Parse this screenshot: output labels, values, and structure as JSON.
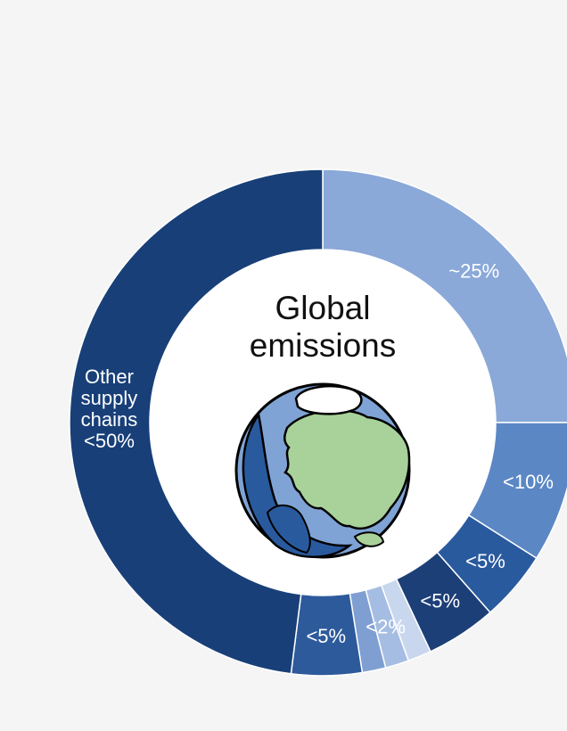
{
  "chart_data": {
    "type": "pie",
    "title_lines": [
      "Global",
      "emissions"
    ],
    "segments": [
      {
        "label": "~25%",
        "value": 25,
        "color": "#8aa8d8"
      },
      {
        "label": "<10%",
        "value": 9,
        "color": "#5b87c5"
      },
      {
        "label": "<5%",
        "value": 4.5,
        "color": "#2a5a9e"
      },
      {
        "label": "<5%",
        "value": 4.5,
        "color": "#1d3f78"
      },
      {
        "label": "",
        "value": 1.5,
        "color": "#c9d7ee"
      },
      {
        "label": "<2%",
        "value": 1.5,
        "color": "#a6bde3"
      },
      {
        "label": "",
        "value": 1.5,
        "color": "#7f9fd3"
      },
      {
        "label": "<5%",
        "value": 4.5,
        "color": "#2d5a9b"
      },
      {
        "label": "Other supply chains <50%",
        "label_lines": [
          "Other",
          "supply",
          "chains",
          "<50%"
        ],
        "value": 48,
        "color": "#183f78"
      }
    ],
    "legend": "none"
  },
  "globe": {
    "ocean_color": "#7fa3d4",
    "land_color": "#a8d29a",
    "ice_color": "#ffffff",
    "shadow_color": "#2a5a9e",
    "icon": "globe-icon"
  }
}
